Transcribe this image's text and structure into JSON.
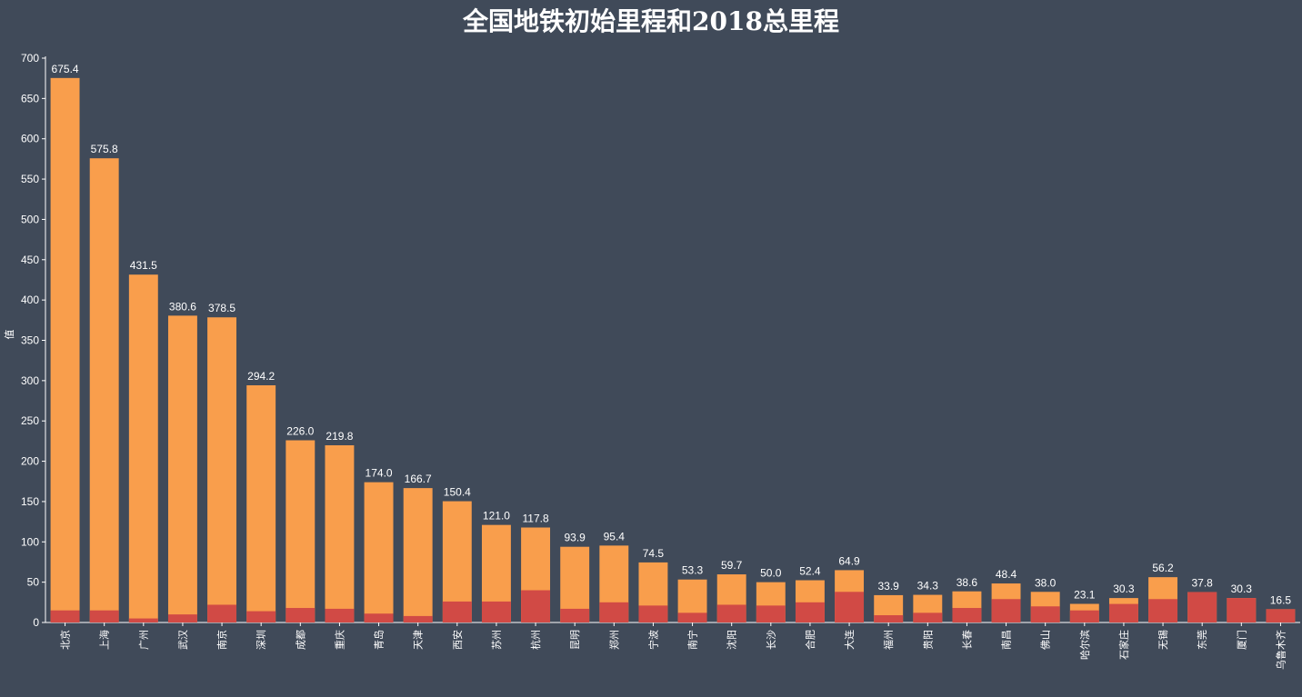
{
  "chart_data": {
    "type": "bar",
    "title": "全国地铁初始里程和2018总里程",
    "ylabel": "值",
    "ylim": [
      0,
      700
    ],
    "yticks": [
      0,
      50,
      100,
      150,
      200,
      250,
      300,
      350,
      400,
      450,
      500,
      550,
      600,
      650,
      700
    ],
    "categories": [
      "北京",
      "上海",
      "广州",
      "武汉",
      "南京",
      "深圳",
      "成都",
      "重庆",
      "青岛",
      "天津",
      "西安",
      "苏州",
      "杭州",
      "昆明",
      "郑州",
      "宁波",
      "南宁",
      "沈阳",
      "长沙",
      "合肥",
      "大连",
      "福州",
      "贵阳",
      "长春",
      "南昌",
      "佛山",
      "哈尔滨",
      "石家庄",
      "无锡",
      "东莞",
      "厦门",
      "乌鲁木齐"
    ],
    "series": [
      {
        "values": [
          675.4,
          575.8,
          431.5,
          380.6,
          378.5,
          294.2,
          226.0,
          219.8,
          174.0,
          166.7,
          150.4,
          121.0,
          117.8,
          93.9,
          95.4,
          74.5,
          53.3,
          59.7,
          50.0,
          52.4,
          64.9,
          33.9,
          34.3,
          38.6,
          48.4,
          38.0,
          23.1,
          30.3,
          56.2,
          37.8,
          30.3,
          16.5
        ],
        "color": "#f99e4c"
      },
      {
        "values": [
          15,
          15,
          5,
          10,
          22,
          14,
          18,
          17,
          11,
          8,
          26,
          26,
          40,
          17,
          25,
          21,
          12,
          22,
          21,
          25,
          38,
          9,
          12,
          18,
          29,
          20,
          15,
          23,
          29,
          37.8,
          30.3,
          16.5
        ],
        "color": "#d14a45"
      }
    ],
    "data_labels": [
      "675.4",
      "575.8",
      "431.5",
      "380.6",
      "378.5",
      "294.2",
      "226.0",
      "219.8",
      "174.0",
      "166.7",
      "150.4",
      "121.0",
      "117.8",
      "93.9",
      "95.4",
      "74.5",
      "53.3",
      "59.7",
      "50.0",
      "52.4",
      "64.9",
      "33.9",
      "34.3",
      "38.6",
      "48.4",
      "38.0",
      "23.1",
      "30.3",
      "56.2",
      "37.8",
      "30.3",
      "16.5"
    ],
    "grid": false,
    "background": "#404a59"
  }
}
